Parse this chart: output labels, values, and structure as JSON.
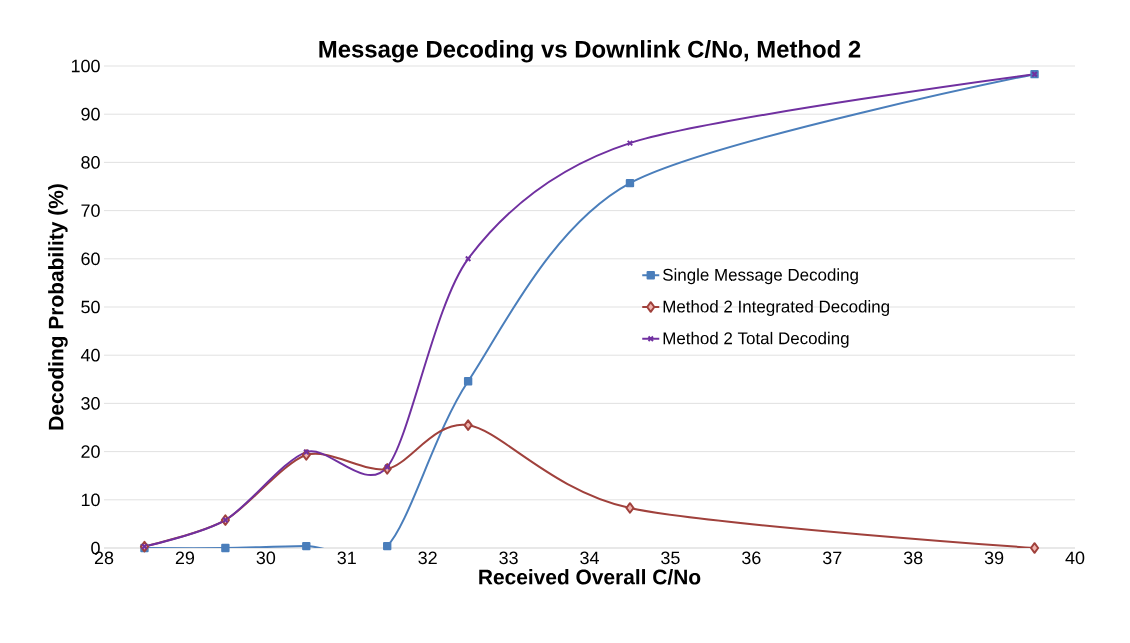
{
  "chart_data": {
    "type": "line",
    "title": "Message Decoding vs Downlink C/No, Method 2",
    "xlabel": "Received Overall C/No",
    "ylabel": "Decoding   Probability (%)",
    "x": [
      28.5,
      29.5,
      30.5,
      31.5,
      32.5,
      34.5,
      39.5
    ],
    "series": [
      {
        "name": "Single Message Decoding",
        "color": "#4a7ebb",
        "marker": "square",
        "values": [
          0,
          0,
          0.4,
          0.4,
          34.6,
          75.7,
          98.3
        ]
      },
      {
        "name": "Method 2 Integrated Decoding",
        "color": "#a0413c",
        "marker": "diamond",
        "values": [
          0.3,
          5.8,
          19.3,
          16.4,
          25.5,
          8.3,
          0
        ]
      },
      {
        "name": "Method 2 Total Decoding",
        "color": "#7030a0",
        "marker": "cross",
        "values": [
          0.3,
          5.8,
          19.9,
          16.8,
          60,
          84,
          98.3
        ]
      }
    ],
    "xlim": [
      28,
      40
    ],
    "xticks": [
      28,
      29,
      30,
      31,
      32,
      33,
      34,
      35,
      36,
      37,
      38,
      39,
      40
    ],
    "ylim": [
      0,
      100
    ],
    "yticks": [
      0,
      10,
      20,
      30,
      40,
      50,
      60,
      70,
      80,
      90,
      100
    ],
    "grid": "y",
    "legend": "right",
    "line_style": "solid"
  }
}
